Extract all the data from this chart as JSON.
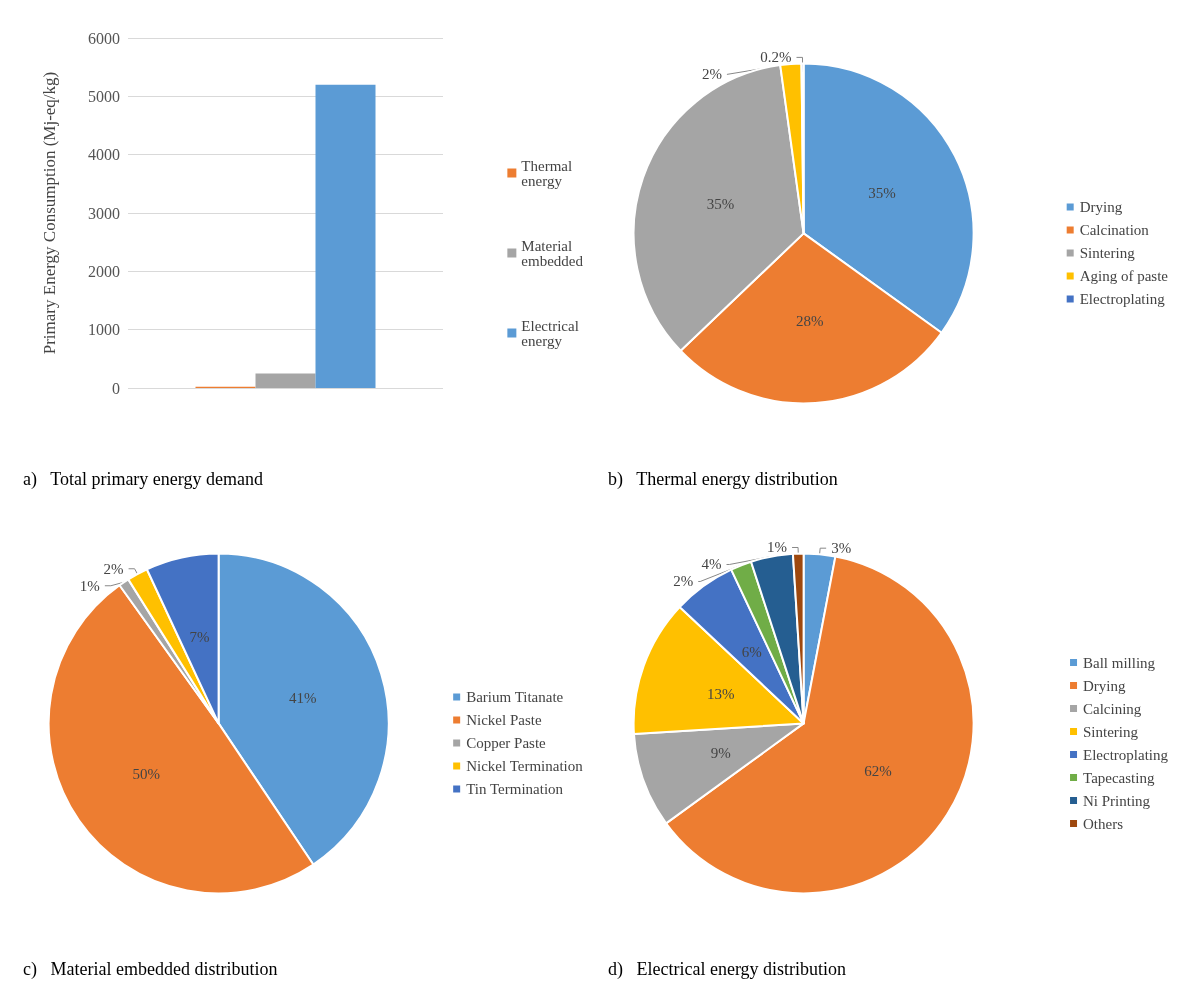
{
  "chart_data": [
    {
      "type": "bar",
      "title": "a)   Total primary energy demand",
      "ylabel": "Primary Energy Consumption (Mj-eq/kg)",
      "categories": [
        null
      ],
      "series": [
        {
          "name": "Thermal energy",
          "color": "#ed7d31",
          "values": [
            20
          ]
        },
        {
          "name": "Material embedded",
          "color": "#a5a5a5",
          "values": [
            250
          ]
        },
        {
          "name": "Electrical energy",
          "color": "#5b9bd5",
          "values": [
            5200
          ]
        }
      ],
      "ylim": [
        0,
        6000
      ],
      "yticks": [
        0,
        1000,
        2000,
        3000,
        4000,
        5000,
        6000
      ],
      "grid": "y",
      "legend": "right"
    },
    {
      "type": "pie",
      "title": "b)   Thermal energy distribution",
      "categories": [
        "Drying",
        "Calcination",
        "Sintering",
        "Aging of paste",
        "Electroplating"
      ],
      "values": [
        35,
        28,
        35,
        2,
        0.2
      ],
      "colors": [
        "#5b9bd5",
        "#ed7d31",
        "#a5a5a5",
        "#ffc000",
        "#4472c4"
      ],
      "value_labels": [
        "35%",
        "28%",
        "35%",
        "2%",
        "0.2%"
      ],
      "legend": "right"
    },
    {
      "type": "pie",
      "title": "c)   Material embedded distribution",
      "categories": [
        "Barium Titanate",
        "Nickel Paste",
        "Copper Paste",
        "Nickel Termination",
        "Tin Termination"
      ],
      "values": [
        41,
        50,
        1,
        2,
        7
      ],
      "colors": [
        "#5b9bd5",
        "#ed7d31",
        "#a5a5a5",
        "#ffc000",
        "#4472c4"
      ],
      "value_labels": [
        "41%",
        "50%",
        "1%",
        "2%",
        "7%"
      ],
      "legend": "right"
    },
    {
      "type": "pie",
      "title": "d)   Electrical energy distribution",
      "categories": [
        "Ball milling",
        "Drying",
        "Calcining",
        "Sintering",
        "Electroplating",
        "Tapecasting",
        "Ni Printing",
        "Others"
      ],
      "values": [
        3,
        62,
        9,
        13,
        6,
        2,
        4,
        1
      ],
      "colors": [
        "#5b9bd5",
        "#ed7d31",
        "#a5a5a5",
        "#ffc000",
        "#4472c4",
        "#70ad47",
        "#255e91",
        "#9e480e"
      ],
      "value_labels": [
        "3%",
        "62%",
        "9%",
        "13%",
        "6%",
        "2%",
        "4%",
        "1%"
      ],
      "legend": "right"
    }
  ]
}
